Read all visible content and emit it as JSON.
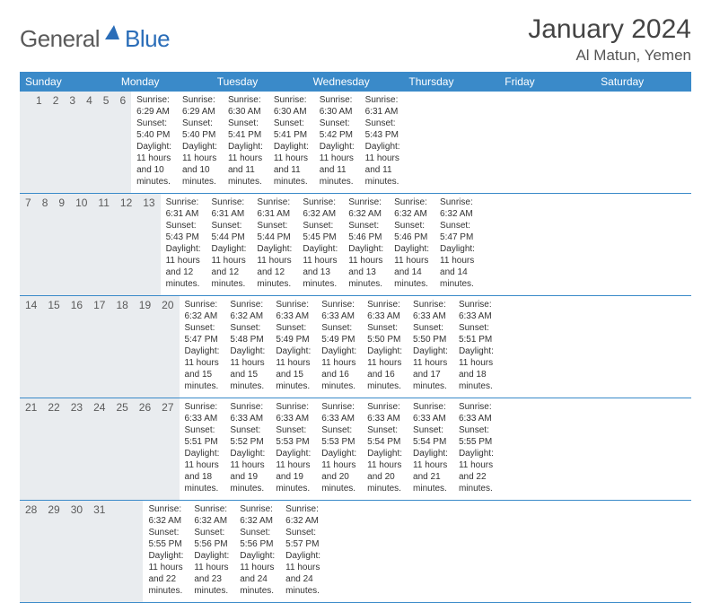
{
  "logo": {
    "text1": "General",
    "text2": "Blue"
  },
  "title": "January 2024",
  "location": "Al Matun, Yemen",
  "colors": {
    "header_bg": "#3a8ac9",
    "header_text": "#ffffff",
    "daynum_bg": "#e9ecef",
    "body_text": "#333333",
    "logo_gray": "#5a5a5a",
    "logo_blue": "#2a6db8",
    "border": "#3a8ac9"
  },
  "weekdays": [
    "Sunday",
    "Monday",
    "Tuesday",
    "Wednesday",
    "Thursday",
    "Friday",
    "Saturday"
  ],
  "weeks": [
    {
      "nums": [
        "",
        "1",
        "2",
        "3",
        "4",
        "5",
        "6"
      ],
      "cells": [
        null,
        {
          "sunrise": "6:29 AM",
          "sunset": "5:40 PM",
          "daylight": "11 hours and 10 minutes."
        },
        {
          "sunrise": "6:29 AM",
          "sunset": "5:40 PM",
          "daylight": "11 hours and 10 minutes."
        },
        {
          "sunrise": "6:30 AM",
          "sunset": "5:41 PM",
          "daylight": "11 hours and 11 minutes."
        },
        {
          "sunrise": "6:30 AM",
          "sunset": "5:41 PM",
          "daylight": "11 hours and 11 minutes."
        },
        {
          "sunrise": "6:30 AM",
          "sunset": "5:42 PM",
          "daylight": "11 hours and 11 minutes."
        },
        {
          "sunrise": "6:31 AM",
          "sunset": "5:43 PM",
          "daylight": "11 hours and 11 minutes."
        }
      ]
    },
    {
      "nums": [
        "7",
        "8",
        "9",
        "10",
        "11",
        "12",
        "13"
      ],
      "cells": [
        {
          "sunrise": "6:31 AM",
          "sunset": "5:43 PM",
          "daylight": "11 hours and 12 minutes."
        },
        {
          "sunrise": "6:31 AM",
          "sunset": "5:44 PM",
          "daylight": "11 hours and 12 minutes."
        },
        {
          "sunrise": "6:31 AM",
          "sunset": "5:44 PM",
          "daylight": "11 hours and 12 minutes."
        },
        {
          "sunrise": "6:32 AM",
          "sunset": "5:45 PM",
          "daylight": "11 hours and 13 minutes."
        },
        {
          "sunrise": "6:32 AM",
          "sunset": "5:46 PM",
          "daylight": "11 hours and 13 minutes."
        },
        {
          "sunrise": "6:32 AM",
          "sunset": "5:46 PM",
          "daylight": "11 hours and 14 minutes."
        },
        {
          "sunrise": "6:32 AM",
          "sunset": "5:47 PM",
          "daylight": "11 hours and 14 minutes."
        }
      ]
    },
    {
      "nums": [
        "14",
        "15",
        "16",
        "17",
        "18",
        "19",
        "20"
      ],
      "cells": [
        {
          "sunrise": "6:32 AM",
          "sunset": "5:47 PM",
          "daylight": "11 hours and 15 minutes."
        },
        {
          "sunrise": "6:32 AM",
          "sunset": "5:48 PM",
          "daylight": "11 hours and 15 minutes."
        },
        {
          "sunrise": "6:33 AM",
          "sunset": "5:49 PM",
          "daylight": "11 hours and 15 minutes."
        },
        {
          "sunrise": "6:33 AM",
          "sunset": "5:49 PM",
          "daylight": "11 hours and 16 minutes."
        },
        {
          "sunrise": "6:33 AM",
          "sunset": "5:50 PM",
          "daylight": "11 hours and 16 minutes."
        },
        {
          "sunrise": "6:33 AM",
          "sunset": "5:50 PM",
          "daylight": "11 hours and 17 minutes."
        },
        {
          "sunrise": "6:33 AM",
          "sunset": "5:51 PM",
          "daylight": "11 hours and 18 minutes."
        }
      ]
    },
    {
      "nums": [
        "21",
        "22",
        "23",
        "24",
        "25",
        "26",
        "27"
      ],
      "cells": [
        {
          "sunrise": "6:33 AM",
          "sunset": "5:51 PM",
          "daylight": "11 hours and 18 minutes."
        },
        {
          "sunrise": "6:33 AM",
          "sunset": "5:52 PM",
          "daylight": "11 hours and 19 minutes."
        },
        {
          "sunrise": "6:33 AM",
          "sunset": "5:53 PM",
          "daylight": "11 hours and 19 minutes."
        },
        {
          "sunrise": "6:33 AM",
          "sunset": "5:53 PM",
          "daylight": "11 hours and 20 minutes."
        },
        {
          "sunrise": "6:33 AM",
          "sunset": "5:54 PM",
          "daylight": "11 hours and 20 minutes."
        },
        {
          "sunrise": "6:33 AM",
          "sunset": "5:54 PM",
          "daylight": "11 hours and 21 minutes."
        },
        {
          "sunrise": "6:33 AM",
          "sunset": "5:55 PM",
          "daylight": "11 hours and 22 minutes."
        }
      ]
    },
    {
      "nums": [
        "28",
        "29",
        "30",
        "31",
        "",
        "",
        ""
      ],
      "cells": [
        {
          "sunrise": "6:32 AM",
          "sunset": "5:55 PM",
          "daylight": "11 hours and 22 minutes."
        },
        {
          "sunrise": "6:32 AM",
          "sunset": "5:56 PM",
          "daylight": "11 hours and 23 minutes."
        },
        {
          "sunrise": "6:32 AM",
          "sunset": "5:56 PM",
          "daylight": "11 hours and 24 minutes."
        },
        {
          "sunrise": "6:32 AM",
          "sunset": "5:57 PM",
          "daylight": "11 hours and 24 minutes."
        },
        null,
        null,
        null
      ]
    }
  ],
  "labels": {
    "sunrise": "Sunrise:",
    "sunset": "Sunset:",
    "daylight": "Daylight:"
  }
}
